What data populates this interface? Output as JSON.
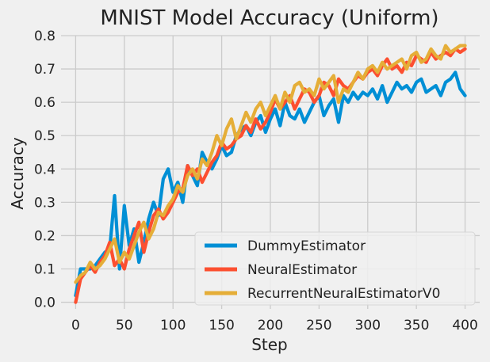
{
  "chart_data": {
    "type": "line",
    "title": "MNIST Model Accuracy (Uniform)",
    "xlabel": "Step",
    "ylabel": "Accuracy",
    "xlim": [
      -15,
      415
    ],
    "ylim": [
      -0.02,
      0.8
    ],
    "xticks": [
      0,
      50,
      100,
      150,
      200,
      250,
      300,
      350,
      400
    ],
    "yticks": [
      0.0,
      0.1,
      0.2,
      0.3,
      0.4,
      0.5,
      0.6,
      0.7,
      0.8
    ],
    "xtick_labels": [
      "0",
      "50",
      "100",
      "150",
      "200",
      "250",
      "300",
      "350",
      "400"
    ],
    "ytick_labels": [
      "0.0",
      "0.1",
      "0.2",
      "0.3",
      "0.4",
      "0.5",
      "0.6",
      "0.7",
      "0.8"
    ],
    "grid": true,
    "legend_position": "lower-right",
    "x": [
      0,
      5,
      10,
      15,
      20,
      25,
      30,
      35,
      40,
      45,
      50,
      55,
      60,
      65,
      70,
      75,
      80,
      85,
      90,
      95,
      100,
      105,
      110,
      115,
      120,
      125,
      130,
      135,
      140,
      145,
      150,
      155,
      160,
      165,
      170,
      175,
      180,
      185,
      190,
      195,
      200,
      205,
      210,
      215,
      220,
      225,
      230,
      235,
      240,
      245,
      250,
      255,
      260,
      265,
      270,
      275,
      280,
      285,
      290,
      295,
      300,
      305,
      310,
      315,
      320,
      325,
      330,
      335,
      340,
      345,
      350,
      355,
      360,
      365,
      370,
      375,
      380,
      385,
      390,
      395,
      400
    ],
    "series": [
      {
        "name": "DummyEstimator",
        "color": "#008fd5",
        "values": [
          0.02,
          0.1,
          0.1,
          0.1,
          0.11,
          0.13,
          0.15,
          0.16,
          0.32,
          0.1,
          0.29,
          0.17,
          0.22,
          0.12,
          0.18,
          0.25,
          0.3,
          0.26,
          0.37,
          0.4,
          0.33,
          0.36,
          0.3,
          0.41,
          0.38,
          0.35,
          0.45,
          0.42,
          0.4,
          0.43,
          0.47,
          0.44,
          0.45,
          0.5,
          0.52,
          0.53,
          0.5,
          0.54,
          0.56,
          0.51,
          0.55,
          0.58,
          0.53,
          0.6,
          0.56,
          0.55,
          0.58,
          0.54,
          0.57,
          0.6,
          0.62,
          0.56,
          0.59,
          0.61,
          0.54,
          0.62,
          0.6,
          0.63,
          0.61,
          0.63,
          0.62,
          0.64,
          0.61,
          0.65,
          0.6,
          0.63,
          0.66,
          0.64,
          0.65,
          0.63,
          0.66,
          0.67,
          0.63,
          0.64,
          0.65,
          0.62,
          0.66,
          0.67,
          0.69,
          0.64,
          0.62
        ]
      },
      {
        "name": "NeuralEstimator",
        "color": "#fc4f30",
        "values": [
          0.0,
          0.07,
          0.09,
          0.11,
          0.09,
          0.12,
          0.14,
          0.18,
          0.11,
          0.13,
          0.1,
          0.16,
          0.2,
          0.24,
          0.15,
          0.21,
          0.26,
          0.28,
          0.25,
          0.27,
          0.3,
          0.33,
          0.34,
          0.41,
          0.38,
          0.4,
          0.36,
          0.39,
          0.42,
          0.44,
          0.48,
          0.46,
          0.47,
          0.49,
          0.5,
          0.53,
          0.51,
          0.55,
          0.52,
          0.54,
          0.57,
          0.61,
          0.58,
          0.6,
          0.62,
          0.58,
          0.61,
          0.64,
          0.63,
          0.6,
          0.62,
          0.66,
          0.65,
          0.62,
          0.67,
          0.65,
          0.64,
          0.66,
          0.68,
          0.67,
          0.69,
          0.7,
          0.68,
          0.71,
          0.73,
          0.7,
          0.71,
          0.69,
          0.72,
          0.71,
          0.74,
          0.73,
          0.72,
          0.75,
          0.73,
          0.74,
          0.75,
          0.74,
          0.76,
          0.75,
          0.76
        ]
      },
      {
        "name": "RecurrentNeuralEstimatorV0",
        "color": "#e5ae38",
        "values": [
          0.06,
          0.08,
          0.09,
          0.12,
          0.1,
          0.11,
          0.13,
          0.16,
          0.19,
          0.12,
          0.15,
          0.13,
          0.17,
          0.21,
          0.24,
          0.19,
          0.22,
          0.27,
          0.26,
          0.29,
          0.31,
          0.35,
          0.33,
          0.38,
          0.4,
          0.37,
          0.43,
          0.41,
          0.45,
          0.5,
          0.47,
          0.52,
          0.55,
          0.49,
          0.53,
          0.57,
          0.54,
          0.58,
          0.6,
          0.56,
          0.59,
          0.62,
          0.58,
          0.63,
          0.6,
          0.65,
          0.66,
          0.63,
          0.64,
          0.62,
          0.67,
          0.64,
          0.66,
          0.68,
          0.6,
          0.64,
          0.63,
          0.66,
          0.69,
          0.67,
          0.7,
          0.71,
          0.69,
          0.72,
          0.7,
          0.71,
          0.72,
          0.73,
          0.7,
          0.74,
          0.75,
          0.72,
          0.73,
          0.76,
          0.74,
          0.73,
          0.77,
          0.75,
          0.76,
          0.77,
          0.77
        ]
      }
    ]
  }
}
